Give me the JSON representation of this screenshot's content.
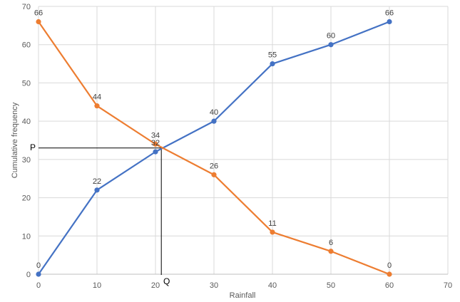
{
  "chart_data": {
    "type": "line",
    "title": "",
    "xlabel": "Rainfall",
    "ylabel": "Cumulative frequency",
    "xlim": [
      0,
      70
    ],
    "ylim": [
      0,
      70
    ],
    "xticks": [
      0,
      10,
      20,
      30,
      40,
      50,
      60,
      70
    ],
    "yticks": [
      0,
      10,
      20,
      30,
      40,
      50,
      60,
      70
    ],
    "grid": true,
    "legend": "none",
    "series": [
      {
        "color": "#4472C4",
        "x": [
          0,
          10,
          20,
          30,
          40,
          50,
          60
        ],
        "y": [
          0,
          22,
          32,
          40,
          55,
          60,
          66
        ]
      },
      {
        "color": "#ED7D31",
        "x": [
          0,
          10,
          20,
          30,
          40,
          50,
          60
        ],
        "y": [
          66,
          44,
          34,
          26,
          11,
          6,
          0
        ]
      }
    ],
    "annotations": {
      "intersection": {
        "x": 21,
        "y": 33
      },
      "point_p": "P",
      "point_q": "Q"
    }
  }
}
